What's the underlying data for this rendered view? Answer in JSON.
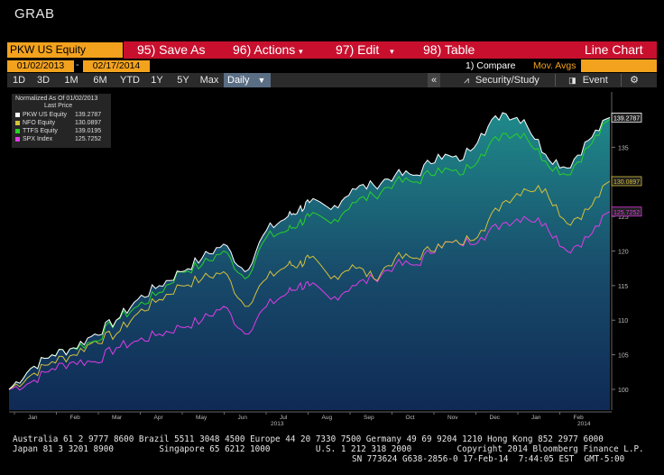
{
  "window": {
    "title": "GRAB"
  },
  "toolbar": {
    "security": "PKW US Equity",
    "save_label": "95) Save As",
    "actions_label": "96) Actions",
    "edit_label": "97) Edit",
    "table_label": "98) Table",
    "view_label": "Line Chart"
  },
  "dates": {
    "start": "01/02/2013",
    "end": "02/17/2014",
    "dash": "-"
  },
  "links": {
    "compare": "1) Compare",
    "mov_avgs": "Mov. Avgs"
  },
  "range": {
    "buttons": [
      "1D",
      "3D",
      "1M",
      "6M",
      "YTD",
      "1Y",
      "5Y",
      "Max"
    ],
    "frequency": "Daily",
    "collapse_icon": "«",
    "security_study": "Security/Study",
    "event": "Event"
  },
  "legend": {
    "header": "Normalized As Of 01/02/2013",
    "subheader": "Last Price",
    "items": [
      {
        "name": "PKW US Equity",
        "value": "139.2787",
        "color": "#ffffff"
      },
      {
        "name": "NFO Equity",
        "value": "130.0897",
        "color": "#d6c13a"
      },
      {
        "name": "TTFS Equity",
        "value": "139.0195",
        "color": "#27d127"
      },
      {
        "name": "SPX Index",
        "value": "125.7252",
        "color": "#e13ce6"
      }
    ]
  },
  "chart_data": {
    "type": "line",
    "ylim": [
      97,
      143
    ],
    "y_ticks": [
      100,
      105,
      110,
      115,
      120,
      125,
      130,
      135
    ],
    "x_ticks": [
      "Jan",
      "Feb",
      "Mar",
      "Apr",
      "May",
      "Jun",
      "Jul",
      "Aug",
      "Sep",
      "Oct",
      "Nov",
      "Dec",
      "Jan",
      "Feb"
    ],
    "year_labels": [
      "2013",
      "2014"
    ],
    "grid": false,
    "legend_position": "top-left",
    "last_value_tags": [
      "139.2787",
      "130.0897",
      "125.7252"
    ],
    "series": [
      {
        "name": "PKW US Equity",
        "color": "#ffffff",
        "x": [
          0,
          10,
          20,
          30,
          40,
          50,
          60,
          70,
          80,
          90,
          100,
          110,
          120,
          130,
          135,
          140,
          150,
          160,
          170,
          180,
          190,
          200,
          210,
          220,
          230,
          240,
          250,
          260,
          270,
          280
        ],
        "values": [
          100,
          103,
          105,
          106,
          108,
          110,
          113,
          115,
          117,
          119,
          121,
          117,
          123,
          125,
          126,
          127,
          126,
          129,
          129.5,
          131,
          131,
          134,
          133,
          137,
          140,
          139,
          134,
          132,
          136,
          139.3
        ]
      },
      {
        "name": "NFO Equity",
        "color": "#d6c13a",
        "x": [
          0,
          10,
          20,
          30,
          40,
          50,
          60,
          70,
          80,
          90,
          100,
          110,
          120,
          130,
          135,
          140,
          150,
          160,
          170,
          180,
          190,
          200,
          210,
          220,
          230,
          240,
          250,
          260,
          270,
          280
        ],
        "values": [
          100,
          102,
          104,
          105,
          107,
          108,
          111,
          113,
          115,
          116,
          117,
          112,
          116,
          118,
          118,
          119,
          116,
          118,
          116,
          119,
          119,
          121,
          121,
          123,
          127,
          129,
          129,
          124,
          126,
          130.1
        ]
      },
      {
        "name": "TTFS Equity",
        "color": "#27d127",
        "x": [
          0,
          10,
          20,
          30,
          40,
          50,
          60,
          70,
          80,
          90,
          100,
          110,
          120,
          130,
          135,
          140,
          150,
          160,
          170,
          180,
          190,
          200,
          210,
          220,
          230,
          240,
          250,
          260,
          270,
          280
        ],
        "values": [
          100,
          103,
          105,
          106,
          107,
          110,
          112,
          114,
          117,
          118,
          120,
          116,
          122,
          123,
          124,
          125,
          124,
          127,
          128,
          130,
          130,
          132,
          131,
          134,
          137,
          137,
          133,
          131,
          135,
          139.0
        ]
      },
      {
        "name": "SPX Index",
        "color": "#e13ce6",
        "x": [
          0,
          10,
          20,
          30,
          40,
          50,
          60,
          70,
          80,
          90,
          100,
          110,
          120,
          130,
          135,
          140,
          150,
          160,
          170,
          180,
          190,
          200,
          210,
          220,
          230,
          240,
          250,
          260,
          270,
          280
        ],
        "values": [
          100,
          101,
          103,
          104,
          104,
          106,
          107,
          108,
          109,
          110,
          112,
          108,
          112,
          114,
          115,
          115,
          113,
          115,
          116,
          118,
          118,
          121,
          121,
          122,
          124,
          125,
          124,
          120,
          122,
          125.7
        ]
      }
    ]
  },
  "footer": {
    "line1": "Australia 61 2 9777 8600 Brazil 5511 3048 4500 Europe 44 20 7330 7500 Germany 49 69 9204 1210 Hong Kong 852 2977 6000",
    "line2": "Japan 81 3 3201 8900         Singapore 65 6212 1000         U.S. 1 212 318 2000         Copyright 2014 Bloomberg Finance L.P.",
    "line3": "SN 773624 G638-2856-0 17-Feb-14  7:44:05 EST  GMT-5:00"
  }
}
